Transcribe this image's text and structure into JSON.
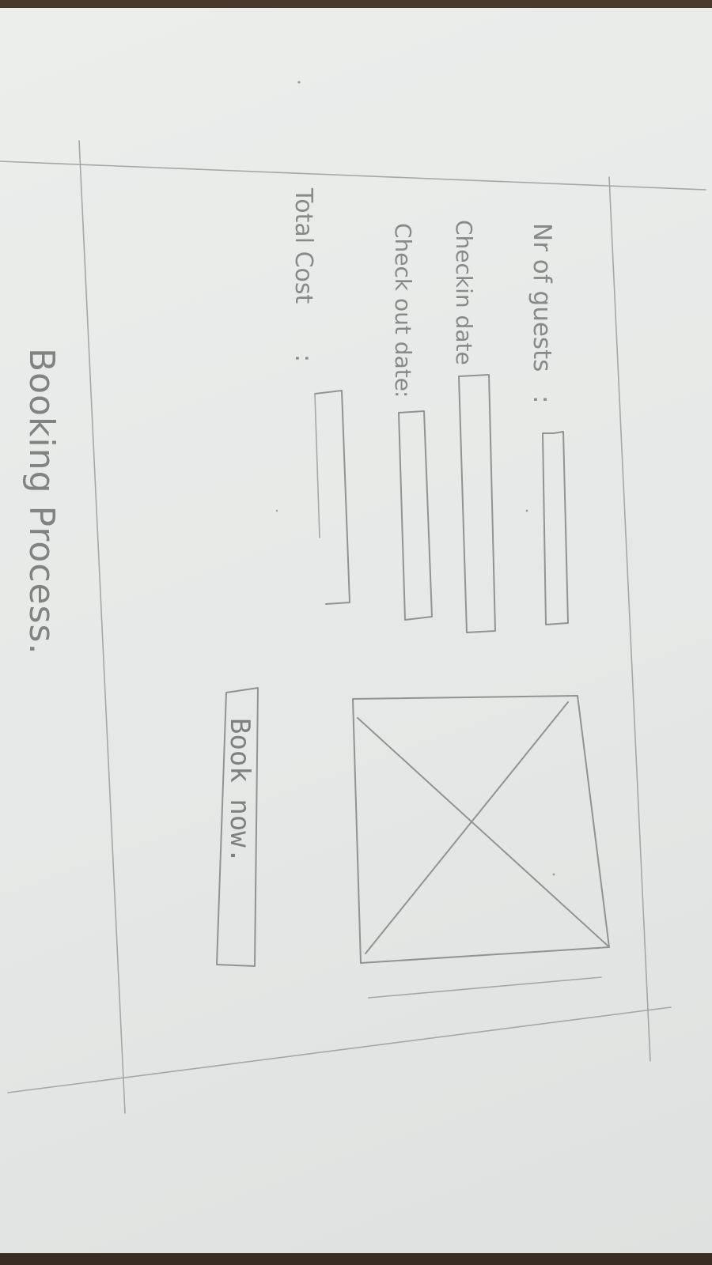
{
  "form": {
    "guests_label": "Nr of guests",
    "checkin_label": "Checkin date",
    "checkout_label": "Check out date",
    "total_cost_label": "Total Cost",
    "separator": ":"
  },
  "image_placeholder": {
    "icon": "image-placeholder-icon"
  },
  "actions": {
    "book_label": "Book now."
  },
  "page": {
    "title": "Booking Process."
  }
}
